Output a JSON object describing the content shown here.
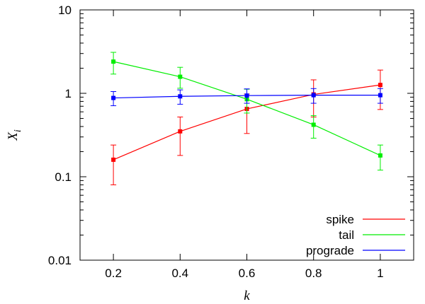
{
  "chart_data": {
    "type": "line",
    "xlabel": "k",
    "ylabel": "X",
    "ylabel_subscript": "i",
    "y_scale": "log",
    "xlim": [
      0.1,
      1.1
    ],
    "ylim": [
      0.01,
      10
    ],
    "x_ticks": [
      "0.2",
      "0.4",
      "0.6",
      "0.8",
      "1"
    ],
    "x_tick_values": [
      0.2,
      0.4,
      0.6,
      0.8,
      1.0
    ],
    "y_ticks": [
      "0.01",
      "0.1",
      "1",
      "10"
    ],
    "y_tick_values": [
      0.01,
      0.1,
      1,
      10
    ],
    "grid": false,
    "legend_position": "bottom-right",
    "x": [
      0.2,
      0.4,
      0.6,
      0.8,
      1.0
    ],
    "series": [
      {
        "name": "spike",
        "color": "#ff0000",
        "values": [
          0.16,
          0.35,
          0.65,
          0.97,
          1.26
        ],
        "err_low": [
          0.08,
          0.18,
          0.33,
          0.52,
          0.64
        ],
        "err_high": [
          0.24,
          0.52,
          0.98,
          1.45,
          1.9
        ]
      },
      {
        "name": "tail",
        "color": "#00ee00",
        "values": [
          2.4,
          1.58,
          0.85,
          0.42,
          0.18
        ],
        "err_low": [
          1.7,
          1.15,
          0.58,
          0.29,
          0.12
        ],
        "err_high": [
          3.1,
          2.05,
          1.12,
          0.54,
          0.24
        ]
      },
      {
        "name": "prograde",
        "color": "#0000ff",
        "values": [
          0.88,
          0.92,
          0.94,
          0.95,
          0.95
        ],
        "err_low": [
          0.71,
          0.74,
          0.76,
          0.76,
          0.76
        ],
        "err_high": [
          1.05,
          1.1,
          1.13,
          1.14,
          1.14
        ]
      }
    ]
  }
}
